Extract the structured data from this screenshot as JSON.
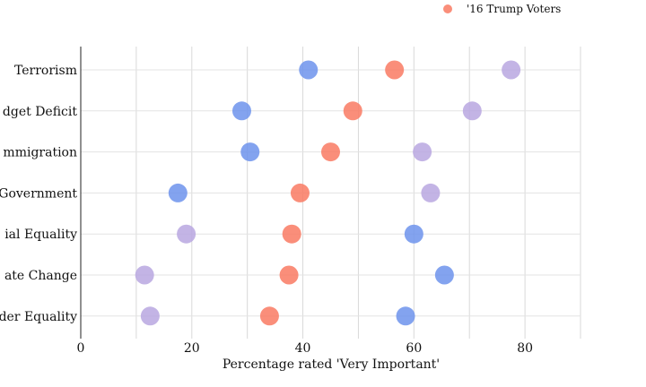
{
  "chart_data": {
    "type": "scatter",
    "title": "",
    "xlabel": "Percentage rated 'Very Important'",
    "ylabel": "",
    "xlim": [
      0,
      90
    ],
    "x_ticks": [
      0,
      20,
      40,
      60,
      80
    ],
    "x_tick_labels": [
      "0",
      "20",
      "40",
      "60",
      "80"
    ],
    "categories": [
      "Terrorism",
      "Budget Deficit",
      "Immigration",
      "Size of Government",
      "Racial Equality",
      "Climate Change",
      "Gender Equality"
    ],
    "category_labels_visible": [
      "Terrorism",
      "dget Deficit",
      "mmigration",
      "Government",
      "ial Equality",
      "ate Change",
      "der Equality"
    ],
    "grid": true,
    "legend_position": "top-right",
    "series": [
      {
        "color": "#6d93ec",
        "values": [
          41,
          29,
          30.5,
          17.5,
          60,
          65.5,
          58.5
        ]
      },
      {
        "name": "'16 Trump Voters",
        "color": "#f97a63",
        "values": [
          56.5,
          49,
          45,
          39.5,
          38,
          37.5,
          34
        ]
      },
      {
        "color": "#b8a7e0",
        "values": [
          77.5,
          70.5,
          61.5,
          63,
          19,
          11.5,
          12.5
        ]
      }
    ]
  }
}
